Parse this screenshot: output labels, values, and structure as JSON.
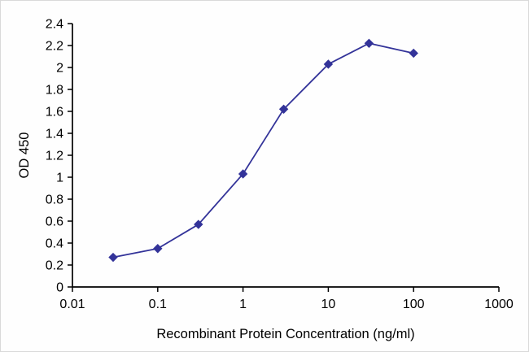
{
  "chart_data": {
    "type": "line",
    "title": "",
    "xlabel": "Recombinant Protein Concentration (ng/ml)",
    "ylabel": "OD 450",
    "x_scale": "log",
    "xlim": [
      0.01,
      1000
    ],
    "ylim": [
      0,
      2.4
    ],
    "x_ticks": [
      0.01,
      0.1,
      1,
      10,
      100,
      1000
    ],
    "y_tick_step": 0.2,
    "grid": false,
    "legend": "none",
    "marker": "diamond",
    "line_color": "#333399",
    "marker_color": "#333399",
    "axis_color": "#000000",
    "series": [
      {
        "name": "OD450",
        "x": [
          0.03,
          0.1,
          0.3,
          1,
          3,
          10,
          30,
          100
        ],
        "y": [
          0.27,
          0.35,
          0.57,
          1.03,
          1.62,
          2.03,
          2.22,
          2.13
        ]
      }
    ]
  }
}
